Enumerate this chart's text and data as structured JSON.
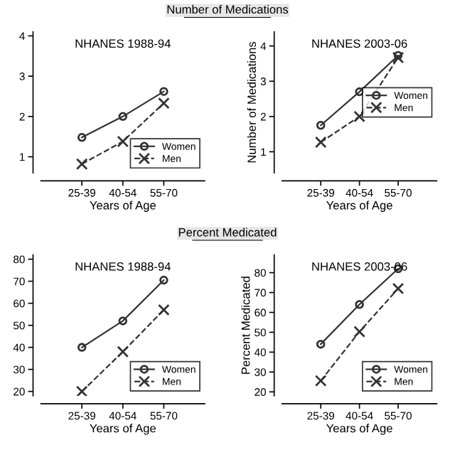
{
  "chart_data": [
    {
      "type": "line",
      "title": "NHANES 1988-94",
      "xlabel": "Years of Age",
      "annotations": [
        "Number of Medications"
      ],
      "categories": [
        "25-39",
        "40-54",
        "55-70"
      ],
      "ylim": [
        0.6,
        4.1
      ],
      "yticks": [
        1,
        2,
        3,
        4
      ],
      "legend": "bottom right",
      "series": [
        {
          "name": "Women",
          "color": "#333333",
          "values": [
            1.48,
            2.0,
            2.62
          ],
          "marker": "circle",
          "line_style": "solid"
        },
        {
          "name": "Men",
          "color": "#333333",
          "values": [
            0.82,
            1.38,
            2.33
          ],
          "marker": "cross",
          "line_style": "dashed"
        }
      ]
    },
    {
      "type": "line",
      "title": "NHANES 2003-06",
      "xlabel": "Years of Age",
      "ylabel": "Number of Medications",
      "categories": [
        "25-39",
        "40-54",
        "55-70"
      ],
      "ylim": [
        0.4,
        4.4
      ],
      "yticks": [
        1,
        2,
        3,
        4
      ],
      "legend": "right",
      "series": [
        {
          "name": "Women",
          "color": "#333333",
          "values": [
            1.75,
            2.7,
            3.73
          ],
          "marker": "circle",
          "line_style": "solid"
        },
        {
          "name": "Men",
          "color": "#333333",
          "values": [
            1.27,
            2.0,
            3.67
          ],
          "marker": "cross",
          "line_style": "dashed"
        }
      ]
    },
    {
      "type": "line",
      "title": "NHANES 1988-94",
      "xlabel": "Years of Age",
      "annotations": [
        "Percent Medicated"
      ],
      "categories": [
        "25-39",
        "40-54",
        "55-70"
      ],
      "ylim": [
        18,
        82
      ],
      "yticks": [
        20,
        30,
        40,
        50,
        60,
        70,
        80
      ],
      "legend": "bottom right",
      "series": [
        {
          "name": "Women",
          "color": "#333333",
          "values": [
            40,
            52,
            70.5
          ],
          "marker": "circle",
          "line_style": "solid"
        },
        {
          "name": "Men",
          "color": "#333333",
          "values": [
            20,
            38,
            57
          ],
          "marker": "cross",
          "line_style": "dashed"
        }
      ]
    },
    {
      "type": "line",
      "title": "NHANES 2003-06",
      "xlabel": "Years of Age",
      "ylabel": "Percent Medicated",
      "categories": [
        "25-39",
        "40-54",
        "55-70"
      ],
      "ylim": [
        18,
        89
      ],
      "yticks": [
        20,
        30,
        40,
        50,
        60,
        70,
        80
      ],
      "legend": "bottom right",
      "series": [
        {
          "name": "Women",
          "color": "#333333",
          "values": [
            44,
            64,
            82
          ],
          "marker": "circle",
          "line_style": "solid"
        },
        {
          "name": "Men",
          "color": "#333333",
          "values": [
            25.6,
            50.3,
            72
          ],
          "marker": "cross",
          "line_style": "dashed"
        }
      ]
    }
  ]
}
